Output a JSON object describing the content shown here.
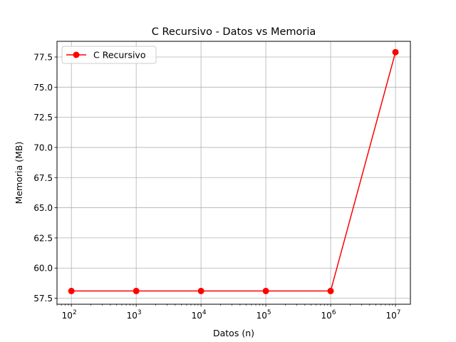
{
  "chart_data": {
    "type": "line",
    "title": "C Recursivo - Datos vs Memoria",
    "xlabel": "Datos (n)",
    "ylabel": "Memoria (MB)",
    "xscale": "log",
    "xlim": [
      60,
      17000000
    ],
    "ylim": [
      57.0,
      78.8
    ],
    "grid": true,
    "legend_position": "top-left",
    "x": [
      100,
      1000,
      10000,
      100000,
      1000000,
      10000000
    ],
    "x_tick_values": [
      100,
      1000,
      10000,
      100000,
      1000000,
      10000000
    ],
    "x_tick_exponents": [
      "2",
      "3",
      "4",
      "5",
      "6",
      "7"
    ],
    "x_tick_base": "10",
    "y_ticks": [
      "57.5",
      "60.0",
      "62.5",
      "65.0",
      "67.5",
      "70.0",
      "72.5",
      "75.0",
      "77.5"
    ],
    "series": [
      {
        "name": "C Recursivo",
        "color": "#ff0000",
        "marker": "circle",
        "values": [
          58.1,
          58.1,
          58.1,
          58.1,
          58.1,
          77.9
        ]
      }
    ]
  }
}
